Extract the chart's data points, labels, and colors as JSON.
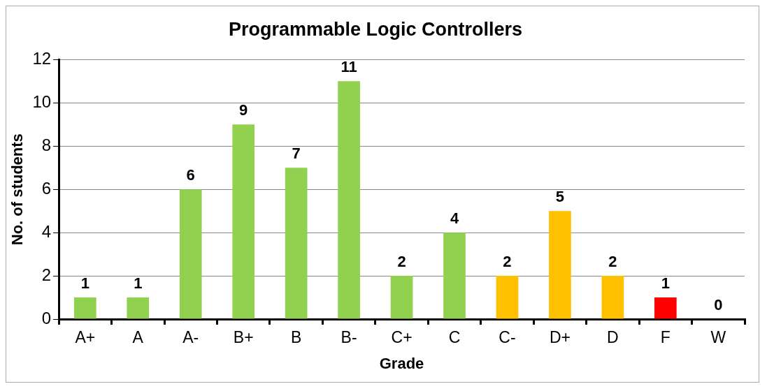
{
  "chart_data": {
    "type": "bar",
    "title": "Programmable Logic Controllers",
    "xlabel": "Grade",
    "ylabel": "No. of students",
    "categories": [
      "A+",
      "A",
      "A-",
      "B+",
      "B",
      "B-",
      "C+",
      "C",
      "C-",
      "D+",
      "D",
      "F",
      "W"
    ],
    "values": [
      1,
      1,
      6,
      9,
      7,
      11,
      2,
      4,
      2,
      5,
      2,
      1,
      0
    ],
    "colors": [
      "#92d050",
      "#92d050",
      "#92d050",
      "#92d050",
      "#92d050",
      "#92d050",
      "#92d050",
      "#92d050",
      "#ffc000",
      "#ffc000",
      "#ffc000",
      "#ff0000",
      "#ff0000"
    ],
    "ylim": [
      0,
      12
    ],
    "yticks": [
      0,
      2,
      4,
      6,
      8,
      10,
      12
    ],
    "grid": "y",
    "legend": false,
    "data_labels": true
  }
}
